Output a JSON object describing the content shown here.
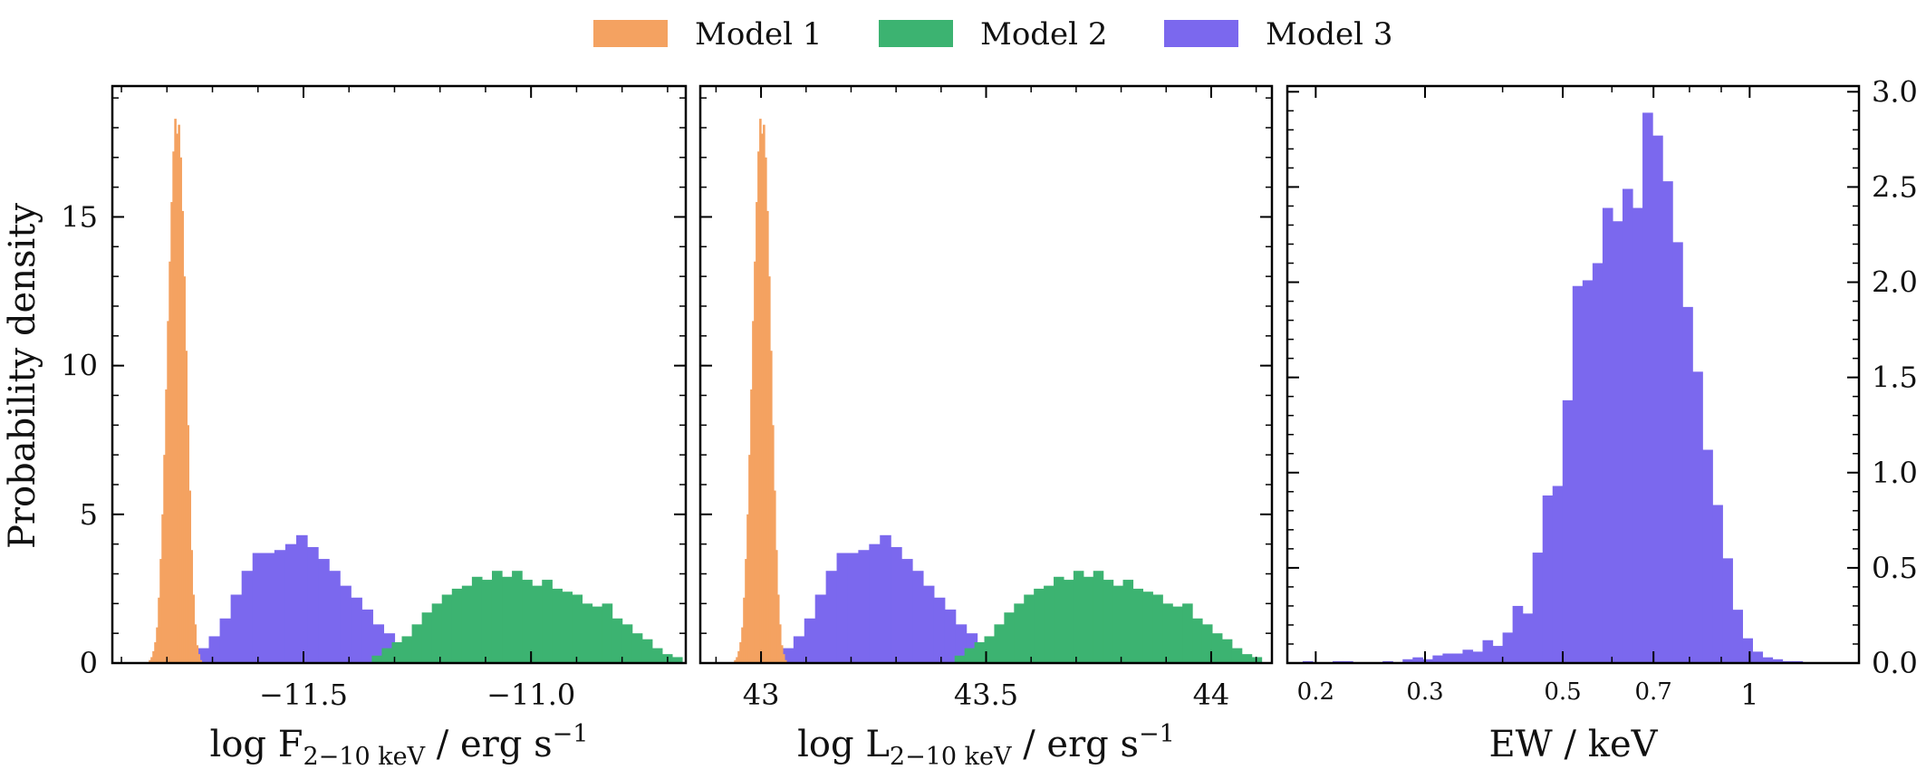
{
  "legend": [
    {
      "label": "Model 1",
      "color": "#f4a261"
    },
    {
      "label": "Model 2",
      "color": "#3cb371"
    },
    {
      "label": "Model 3",
      "color": "#7b68ee"
    }
  ],
  "chart_data": [
    {
      "type": "histogram",
      "xlabel": "log F",
      "xlabel_sub": "2−10 keV",
      "xlabel_units": " / erg s",
      "xlabel_sup": "−1",
      "ylabel": "Probability density",
      "xlim": [
        -11.92,
        -10.66
      ],
      "ylim": [
        0,
        19.4
      ],
      "x_scale": "linear",
      "grid": false,
      "xticks": [
        {
          "v": -11.5,
          "label": "−11.5"
        },
        {
          "v": -11.0,
          "label": "−11.0"
        }
      ],
      "yticks": [
        {
          "v": 0,
          "label": "0"
        },
        {
          "v": 5,
          "label": "5"
        },
        {
          "v": 10,
          "label": "10"
        },
        {
          "v": 15,
          "label": "15"
        }
      ],
      "series": [
        {
          "name": "Model 3",
          "color": "#7b68ee",
          "x0": -11.78,
          "dx": 0.024,
          "values": [
            0.15,
            0.3,
            0.5,
            0.9,
            1.5,
            2.3,
            3.1,
            3.7,
            3.7,
            3.8,
            4.0,
            4.3,
            3.9,
            3.5,
            3.1,
            2.6,
            2.2,
            1.8,
            1.3,
            1.0,
            0.7,
            0.45,
            0.3,
            0.2,
            0.1
          ]
        },
        {
          "name": "Model 2",
          "color": "#3cb371",
          "x0": -11.35,
          "dx": 0.022,
          "values": [
            0.25,
            0.5,
            0.7,
            0.9,
            1.3,
            1.7,
            2.0,
            2.3,
            2.5,
            2.6,
            2.9,
            2.8,
            3.1,
            2.9,
            3.1,
            2.8,
            2.6,
            2.8,
            2.5,
            2.4,
            2.3,
            2.0,
            1.9,
            2.0,
            1.5,
            1.3,
            1.0,
            0.8,
            0.5,
            0.3,
            0.2
          ]
        },
        {
          "name": "Model 1",
          "color": "#f4a261",
          "x0": -11.84,
          "dx": 0.004,
          "values": [
            0.1,
            0.2,
            0.4,
            0.7,
            1.2,
            2.2,
            3.5,
            5.0,
            7.0,
            9.2,
            11.5,
            13.5,
            15.5,
            17.2,
            18.3,
            17.8,
            18.1,
            17.0,
            15.2,
            13.0,
            10.5,
            8.0,
            5.8,
            3.8,
            2.3,
            1.3,
            0.6,
            0.3,
            0.1
          ]
        }
      ]
    },
    {
      "type": "histogram",
      "xlabel": "log L",
      "xlabel_sub": "2−10 keV",
      "xlabel_units": " / erg s",
      "xlabel_sup": "−1",
      "ylabel": "",
      "xlim": [
        42.865,
        44.135
      ],
      "ylim": [
        0,
        19.4
      ],
      "x_scale": "linear",
      "grid": false,
      "xticks": [
        {
          "v": 43.0,
          "label": "43"
        },
        {
          "v": 43.5,
          "label": "43.5"
        },
        {
          "v": 44.0,
          "label": "44"
        }
      ],
      "yticks": [],
      "series": [
        {
          "name": "Model 3",
          "color": "#7b68ee",
          "x0": 43.0,
          "dx": 0.024,
          "values": [
            0.15,
            0.3,
            0.5,
            0.9,
            1.5,
            2.3,
            3.1,
            3.7,
            3.7,
            3.8,
            4.0,
            4.3,
            3.9,
            3.5,
            3.1,
            2.6,
            2.2,
            1.8,
            1.3,
            1.0,
            0.7,
            0.45,
            0.3,
            0.2,
            0.1
          ]
        },
        {
          "name": "Model 2",
          "color": "#3cb371",
          "x0": 43.43,
          "dx": 0.022,
          "values": [
            0.25,
            0.5,
            0.7,
            0.9,
            1.3,
            1.7,
            2.0,
            2.3,
            2.5,
            2.6,
            2.9,
            2.8,
            3.1,
            2.9,
            3.1,
            2.8,
            2.6,
            2.8,
            2.5,
            2.4,
            2.3,
            2.0,
            1.9,
            2.0,
            1.5,
            1.3,
            1.0,
            0.8,
            0.5,
            0.3,
            0.2
          ]
        },
        {
          "name": "Model 1",
          "color": "#f4a261",
          "x0": 42.94,
          "dx": 0.004,
          "values": [
            0.1,
            0.2,
            0.4,
            0.7,
            1.2,
            2.2,
            3.5,
            5.0,
            7.0,
            9.2,
            11.5,
            13.5,
            15.5,
            17.2,
            18.3,
            17.8,
            18.1,
            17.0,
            15.2,
            13.0,
            10.5,
            8.0,
            5.8,
            3.8,
            2.3,
            1.3,
            0.6,
            0.3,
            0.1
          ]
        }
      ]
    },
    {
      "type": "histogram",
      "xlabel": "EW / keV",
      "ylabel": "",
      "xlim": [
        0.18,
        1.5
      ],
      "ylim": [
        0,
        3.03
      ],
      "x_scale": "log",
      "grid": false,
      "yaxis_side": "right",
      "xticks": [
        {
          "v": 0.2,
          "label": "0.2",
          "small": true
        },
        {
          "v": 0.3,
          "label": "0.3",
          "small": true
        },
        {
          "v": 0.5,
          "label": "0.5",
          "small": true
        },
        {
          "v": 0.7,
          "label": "0.7",
          "small": true
        },
        {
          "v": 1.0,
          "label": "1",
          "small": false
        }
      ],
      "yticks": [
        {
          "v": 0.0,
          "label": "0.0"
        },
        {
          "v": 0.5,
          "label": "0.5"
        },
        {
          "v": 1.0,
          "label": "1.0"
        },
        {
          "v": 1.5,
          "label": "1.5"
        },
        {
          "v": 2.0,
          "label": "2.0"
        },
        {
          "v": 2.5,
          "label": "2.5"
        },
        {
          "v": 3.0,
          "label": "3.0"
        }
      ],
      "series": [
        {
          "name": "Model 3",
          "color": "#7b68ee",
          "log_x0": -0.72,
          "log_dx": 0.0161,
          "values": [
            0.01,
            0.0,
            0.0,
            0.01,
            0.01,
            0.0,
            0.0,
            0.0,
            0.01,
            0.0,
            0.02,
            0.03,
            0.02,
            0.04,
            0.05,
            0.05,
            0.07,
            0.06,
            0.12,
            0.09,
            0.16,
            0.3,
            0.26,
            0.58,
            0.88,
            0.93,
            1.38,
            1.98,
            2.01,
            2.1,
            2.39,
            2.32,
            2.49,
            2.39,
            2.89,
            2.77,
            2.53,
            2.21,
            1.87,
            1.53,
            1.12,
            0.83,
            0.55,
            0.28,
            0.13,
            0.06,
            0.03,
            0.02,
            0.01,
            0.01
          ]
        }
      ]
    }
  ]
}
